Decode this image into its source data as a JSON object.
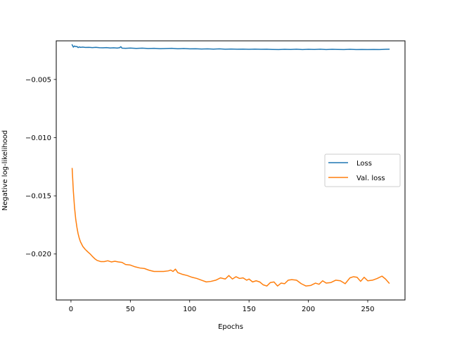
{
  "chart_data": {
    "type": "line",
    "title": "",
    "xlabel": "Epochs",
    "ylabel": "Negative log-likelihood",
    "xlim": [
      -12.4,
      281.4
    ],
    "ylim": [
      -0.02395,
      -0.00168
    ],
    "xticks": [
      0,
      50,
      100,
      150,
      200,
      250
    ],
    "xtick_labels": [
      "0",
      "50",
      "100",
      "150",
      "200",
      "250"
    ],
    "yticks": [
      -0.005,
      -0.01,
      -0.015,
      -0.02
    ],
    "ytick_labels": [
      "−0.005",
      "−0.010",
      "−0.015",
      "−0.020"
    ],
    "grid": false,
    "legend_position": "center-right",
    "series": [
      {
        "name": "Loss",
        "color": "#1f77b4",
        "points": [
          [
            1,
            -0.00202
          ],
          [
            2,
            -0.00222
          ],
          [
            3,
            -0.00212
          ],
          [
            4,
            -0.00218
          ],
          [
            5,
            -0.00216
          ],
          [
            6,
            -0.00226
          ],
          [
            7,
            -0.0022
          ],
          [
            8,
            -0.00224
          ],
          [
            10,
            -0.00222
          ],
          [
            12,
            -0.00225
          ],
          [
            15,
            -0.00224
          ],
          [
            18,
            -0.00226
          ],
          [
            21,
            -0.00224
          ],
          [
            24,
            -0.00227
          ],
          [
            27,
            -0.00228
          ],
          [
            30,
            -0.00226
          ],
          [
            33,
            -0.00229
          ],
          [
            36,
            -0.00228
          ],
          [
            39,
            -0.0023
          ],
          [
            41,
            -0.00227
          ],
          [
            42,
            -0.00218
          ],
          [
            43,
            -0.00231
          ],
          [
            46,
            -0.00232
          ],
          [
            50,
            -0.0023
          ],
          [
            55,
            -0.00233
          ],
          [
            60,
            -0.00231
          ],
          [
            65,
            -0.00234
          ],
          [
            70,
            -0.00232
          ],
          [
            75,
            -0.00235
          ],
          [
            80,
            -0.00234
          ],
          [
            85,
            -0.00232
          ],
          [
            90,
            -0.00236
          ],
          [
            95,
            -0.00234
          ],
          [
            100,
            -0.00237
          ],
          [
            105,
            -0.00236
          ],
          [
            110,
            -0.00238
          ],
          [
            115,
            -0.00237
          ],
          [
            120,
            -0.00239
          ],
          [
            125,
            -0.00237
          ],
          [
            130,
            -0.0024
          ],
          [
            135,
            -0.00238
          ],
          [
            140,
            -0.0024
          ],
          [
            145,
            -0.00239
          ],
          [
            150,
            -0.00241
          ],
          [
            155,
            -0.00239
          ],
          [
            160,
            -0.00241
          ],
          [
            165,
            -0.0024
          ],
          [
            170,
            -0.00242
          ],
          [
            175,
            -0.00243
          ],
          [
            180,
            -0.00241
          ],
          [
            185,
            -0.00242
          ],
          [
            190,
            -0.0024
          ],
          [
            195,
            -0.00243
          ],
          [
            200,
            -0.00241
          ],
          [
            205,
            -0.00242
          ],
          [
            210,
            -0.0024
          ],
          [
            215,
            -0.00243
          ],
          [
            220,
            -0.00241
          ],
          [
            225,
            -0.00242
          ],
          [
            230,
            -0.00243
          ],
          [
            235,
            -0.00241
          ],
          [
            240,
            -0.00243
          ],
          [
            245,
            -0.00242
          ],
          [
            250,
            -0.00243
          ],
          [
            255,
            -0.00242
          ],
          [
            260,
            -0.00243
          ],
          [
            265,
            -0.00241
          ],
          [
            268,
            -0.0024
          ]
        ]
      },
      {
        "name": "Val. loss",
        "color": "#ff7f0e",
        "points": [
          [
            1,
            -0.01265
          ],
          [
            2,
            -0.0146
          ],
          [
            3,
            -0.016
          ],
          [
            4,
            -0.017
          ],
          [
            5,
            -0.0177
          ],
          [
            6,
            -0.01825
          ],
          [
            7,
            -0.01865
          ],
          [
            8,
            -0.01895
          ],
          [
            10,
            -0.01935
          ],
          [
            12,
            -0.0196
          ],
          [
            14,
            -0.0198
          ],
          [
            16,
            -0.01998
          ],
          [
            18,
            -0.0202
          ],
          [
            20,
            -0.0204
          ],
          [
            22,
            -0.02055
          ],
          [
            25,
            -0.02065
          ],
          [
            28,
            -0.02065
          ],
          [
            31,
            -0.02058
          ],
          [
            34,
            -0.02068
          ],
          [
            37,
            -0.02062
          ],
          [
            40,
            -0.02068
          ],
          [
            43,
            -0.02072
          ],
          [
            46,
            -0.0209
          ],
          [
            50,
            -0.02095
          ],
          [
            54,
            -0.0211
          ],
          [
            58,
            -0.0212
          ],
          [
            62,
            -0.02125
          ],
          [
            66,
            -0.0214
          ],
          [
            70,
            -0.0215
          ],
          [
            74,
            -0.0215
          ],
          [
            78,
            -0.0215
          ],
          [
            82,
            -0.02145
          ],
          [
            84,
            -0.02138
          ],
          [
            86,
            -0.0215
          ],
          [
            88,
            -0.0213
          ],
          [
            90,
            -0.0216
          ],
          [
            94,
            -0.02175
          ],
          [
            98,
            -0.02185
          ],
          [
            102,
            -0.022
          ],
          [
            106,
            -0.0221
          ],
          [
            110,
            -0.02225
          ],
          [
            114,
            -0.0224
          ],
          [
            118,
            -0.02235
          ],
          [
            122,
            -0.02225
          ],
          [
            126,
            -0.02205
          ],
          [
            130,
            -0.02215
          ],
          [
            133,
            -0.02185
          ],
          [
            136,
            -0.02215
          ],
          [
            139,
            -0.02195
          ],
          [
            142,
            -0.0221
          ],
          [
            145,
            -0.02205
          ],
          [
            148,
            -0.02225
          ],
          [
            150,
            -0.02215
          ],
          [
            153,
            -0.0224
          ],
          [
            156,
            -0.0223
          ],
          [
            159,
            -0.0224
          ],
          [
            162,
            -0.02265
          ],
          [
            165,
            -0.02275
          ],
          [
            168,
            -0.02245
          ],
          [
            171,
            -0.0224
          ],
          [
            174,
            -0.02275
          ],
          [
            177,
            -0.0225
          ],
          [
            180,
            -0.02255
          ],
          [
            183,
            -0.02225
          ],
          [
            186,
            -0.0222
          ],
          [
            190,
            -0.02225
          ],
          [
            194,
            -0.02255
          ],
          [
            198,
            -0.02275
          ],
          [
            202,
            -0.0227
          ],
          [
            206,
            -0.0225
          ],
          [
            209,
            -0.0226
          ],
          [
            212,
            -0.0223
          ],
          [
            215,
            -0.0225
          ],
          [
            219,
            -0.02245
          ],
          [
            223,
            -0.02225
          ],
          [
            227,
            -0.0223
          ],
          [
            231,
            -0.02255
          ],
          [
            235,
            -0.02205
          ],
          [
            238,
            -0.02195
          ],
          [
            241,
            -0.022
          ],
          [
            244,
            -0.02235
          ],
          [
            247,
            -0.022
          ],
          [
            250,
            -0.0223
          ],
          [
            254,
            -0.02225
          ],
          [
            258,
            -0.0221
          ],
          [
            262,
            -0.0219
          ],
          [
            265,
            -0.02215
          ],
          [
            268,
            -0.0225
          ]
        ]
      }
    ]
  }
}
